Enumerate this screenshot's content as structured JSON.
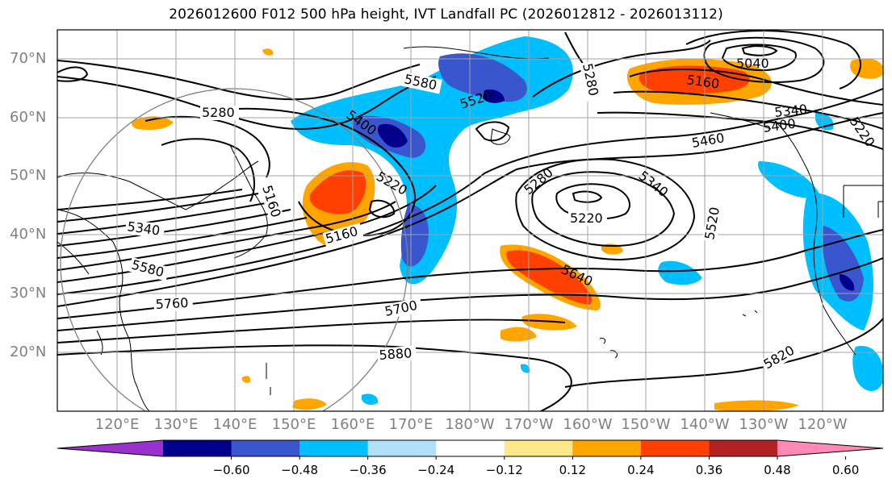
{
  "title": "2026012600 F012 500 hPa height, IVT Landfall PC (2026012812 - 2026013112)",
  "lat_labels": [
    "70°N",
    "60°N",
    "50°N",
    "40°N",
    "30°N",
    "20°N"
  ],
  "lon_labels": [
    "120°E",
    "130°E",
    "140°E",
    "150°E",
    "160°E",
    "170°E",
    "180°W",
    "170°W",
    "160°W",
    "150°W",
    "140°W",
    "130°W",
    "120°W"
  ],
  "contour_labels": [
    "5580",
    "5520",
    "5400",
    "5280",
    "5220",
    "5160",
    "5340",
    "5580",
    "5760",
    "5700",
    "5880",
    "5640",
    "5280",
    "5340",
    "5220",
    "5460",
    "5400",
    "5340",
    "5220",
    "5160",
    "5040",
    "5280",
    "5520",
    "5820",
    "5160"
  ],
  "colorbar": {
    "ticks": [
      "−0.60",
      "−0.48",
      "−0.36",
      "−0.24",
      "−0.12",
      "0.12",
      "0.24",
      "0.36",
      "0.48",
      "0.60"
    ],
    "colors": [
      "#9932cc",
      "#00008b",
      "#3a56cf",
      "#00bfff",
      "#b0e0fa",
      "#ffffff",
      "#ffe88a",
      "#ffa500",
      "#ff4000",
      "#b22222",
      "#ff88b4"
    ]
  },
  "colors": {
    "contour": "#000000",
    "grid": "#a0a0a0",
    "axis_label": "#808080"
  }
}
